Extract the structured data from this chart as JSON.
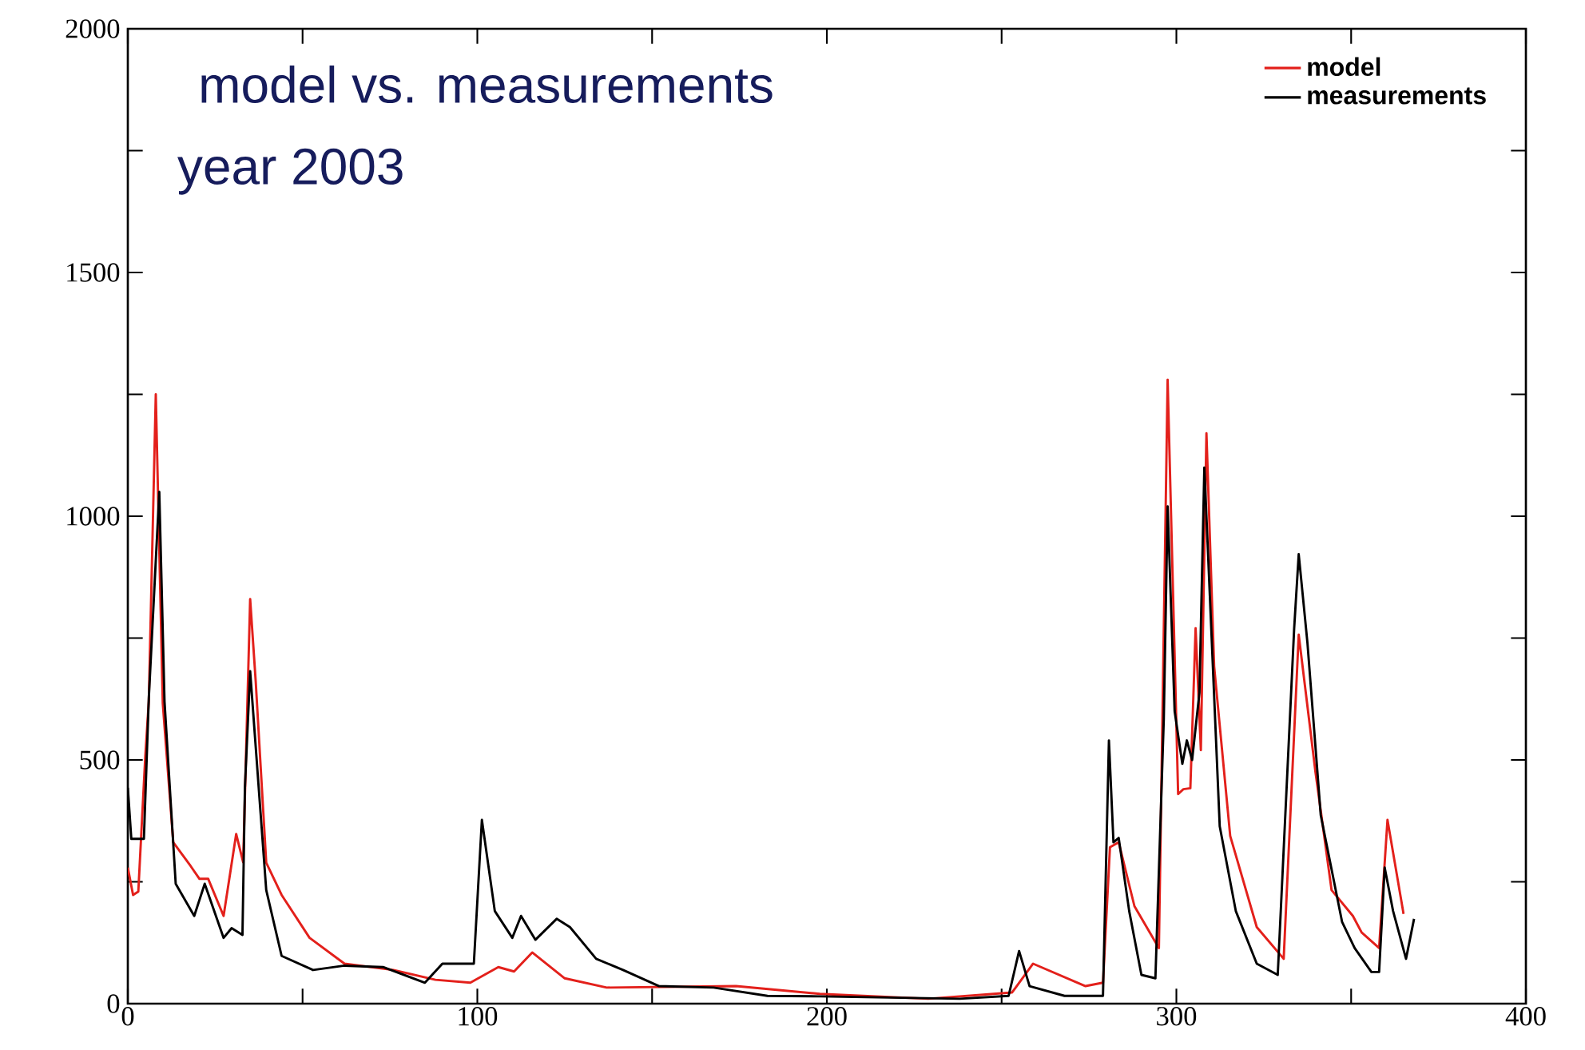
{
  "chart_data": {
    "type": "line",
    "title": "model vs. measurements",
    "subtitle": "year 2003",
    "xlim": [
      0,
      400
    ],
    "ylim": [
      0,
      2000
    ],
    "xticks": [
      0,
      {
        "value": 50,
        "label": null
      },
      100,
      {
        "value": 150,
        "label": null
      },
      200,
      {
        "value": 250,
        "label": null
      },
      300,
      {
        "value": 350,
        "label": null
      },
      400
    ],
    "yticks": [
      0,
      {
        "value": 250,
        "label": null
      },
      500,
      {
        "value": 750,
        "label": null
      },
      1000,
      {
        "value": 1250,
        "label": null
      },
      1500,
      {
        "value": 1750,
        "label": null
      },
      2000
    ],
    "legend": "top right",
    "series": [
      {
        "name": "model",
        "color": "#e3201b",
        "x": [
          0,
          1.5,
          3,
          5,
          6,
          8,
          10,
          13,
          18,
          20.5,
          23,
          27.4,
          31,
          33,
          35,
          36.6,
          39.6,
          44,
          52,
          62,
          76,
          88,
          98,
          106,
          110.5,
          115.7,
          125,
          137,
          174,
          198,
          229,
          253,
          259,
          274,
          279,
          281,
          283.5,
          288,
          295,
          297.5,
          300.5,
          302,
          304,
          305.5,
          307,
          308.6,
          310.8,
          315.4,
          323,
          330.7,
          335,
          339.8,
          344.4,
          350.5,
          353,
          358,
          360.4,
          365
        ],
        "values": [
          279,
          223,
          230,
          508,
          620,
          1250,
          616,
          331,
          282,
          256,
          256,
          180,
          348,
          290,
          830,
          660,
          289,
          223,
          135,
          82,
          69,
          49,
          43,
          75,
          66,
          105,
          52,
          33,
          36,
          20,
          10,
          23,
          82,
          36,
          43,
          321,
          331,
          200,
          114,
          1280,
          430,
          440,
          442,
          770,
          520,
          1170,
          692,
          344,
          157,
          92,
          757,
          475,
          233,
          180,
          146,
          114,
          377,
          184
        ]
      },
      {
        "name": "measurements",
        "color": "#000000",
        "x": [
          0,
          1,
          4.6,
          6,
          9,
          10.5,
          13.7,
          19,
          22,
          27.4,
          29.7,
          32.8,
          33.5,
          35,
          39.6,
          44,
          53,
          62,
          73,
          85,
          90,
          98,
          99,
          101.3,
          105,
          110,
          112.5,
          116.6,
          122.7,
          126.5,
          134,
          141.7,
          152,
          167.6,
          183,
          198,
          238,
          252,
          255,
          258,
          268,
          279,
          280.7,
          282,
          283.5,
          286.5,
          290,
          294,
          296.4,
          297.5,
          299.5,
          301.7,
          303,
          304.5,
          306.6,
          308,
          312.4,
          317,
          323,
          329,
          333.7,
          335,
          337.5,
          341.3,
          347.4,
          351,
          355.8,
          358,
          359.6,
          362,
          365.7,
          368
        ],
        "values": [
          443,
          338,
          338,
          626,
          1050,
          620,
          246,
          180,
          246,
          135,
          155,
          141,
          443,
          682,
          233,
          98,
          69,
          78,
          75,
          43,
          82,
          82,
          82,
          377,
          190,
          135,
          180,
          131,
          174,
          157,
          92,
          69,
          36,
          33,
          16,
          15,
          10,
          16,
          108,
          36,
          16,
          16,
          540,
          331,
          340,
          190,
          59,
          52,
          584,
          1020,
          600,
          492,
          540,
          500,
          638,
          1100,
          364,
          190,
          82,
          59,
          770,
          922,
          740,
          387,
          168,
          114,
          65,
          65,
          279,
          190,
          92,
          174
        ]
      }
    ]
  }
}
